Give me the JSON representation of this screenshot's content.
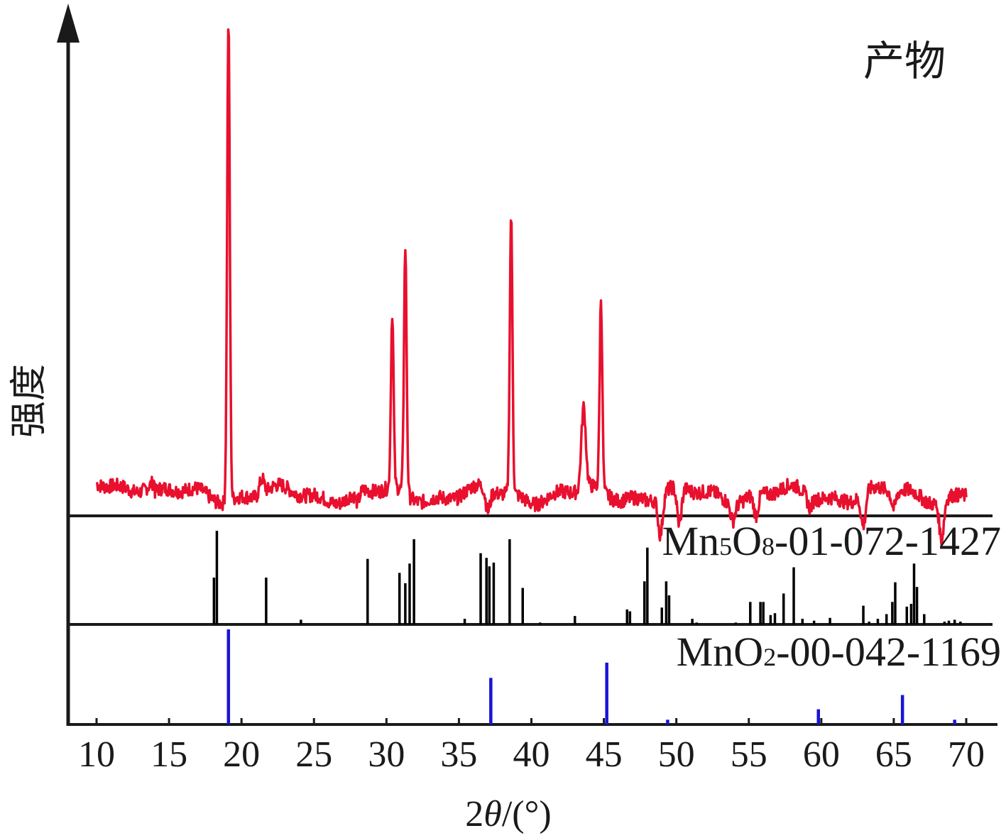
{
  "chart_data": {
    "type": "line",
    "xlabel_parts": {
      "prefix": "2",
      "symbol": "θ",
      "suffix": "/(°)"
    },
    "ylabel": "强度",
    "x_ticks": [
      10,
      15,
      20,
      25,
      30,
      35,
      40,
      45,
      50,
      55,
      60,
      65,
      70
    ],
    "xlim": [
      8,
      72
    ],
    "grid": false,
    "legend": "none",
    "colors": {
      "product": "#e8102e",
      "mn5o8": "#000000",
      "mno2": "#1a14d6",
      "axis": "#1a1a1a"
    },
    "product": {
      "label": "产物",
      "baseline": 12,
      "peaks": [
        {
          "x": 19.1,
          "y": 100
        },
        {
          "x": 21.4,
          "y": 15
        },
        {
          "x": 28.0,
          "y": 10
        },
        {
          "x": 30.4,
          "y": 44
        },
        {
          "x": 31.3,
          "y": 57
        },
        {
          "x": 37.0,
          "y": 8
        },
        {
          "x": 38.6,
          "y": 63
        },
        {
          "x": 43.6,
          "y": 27
        },
        {
          "x": 44.8,
          "y": 47
        },
        {
          "x": 48.9,
          "y": 5
        },
        {
          "x": 50.2,
          "y": 5
        },
        {
          "x": 53.9,
          "y": 9
        },
        {
          "x": 55.5,
          "y": 8
        },
        {
          "x": 59.2,
          "y": 10
        },
        {
          "x": 62.9,
          "y": 6
        },
        {
          "x": 65.0,
          "y": 9
        },
        {
          "x": 68.3,
          "y": 5
        }
      ],
      "x_range": [
        10,
        70
      ]
    },
    "mn5o8": {
      "label_parts": {
        "a": "Mn",
        "b": "5",
        "c": "O",
        "d": "8",
        "e": "-01-072-1427"
      },
      "sticks": [
        [
          18.1,
          50
        ],
        [
          18.3,
          100
        ],
        [
          21.7,
          50
        ],
        [
          24.1,
          5
        ],
        [
          28.7,
          70
        ],
        [
          30.9,
          55
        ],
        [
          31.3,
          44
        ],
        [
          31.6,
          65
        ],
        [
          31.9,
          91
        ],
        [
          35.4,
          6
        ],
        [
          36.5,
          76
        ],
        [
          36.9,
          71
        ],
        [
          37.1,
          62
        ],
        [
          37.4,
          66
        ],
        [
          38.5,
          91
        ],
        [
          39.4,
          39
        ],
        [
          40.6,
          2
        ],
        [
          43.0,
          9
        ],
        [
          46.6,
          16
        ],
        [
          46.8,
          14
        ],
        [
          47.8,
          46
        ],
        [
          48.0,
          82
        ],
        [
          49.0,
          18
        ],
        [
          49.3,
          46
        ],
        [
          49.5,
          31
        ],
        [
          51.1,
          6
        ],
        [
          51.4,
          2
        ],
        [
          54.1,
          2
        ],
        [
          55.1,
          24
        ],
        [
          55.8,
          24
        ],
        [
          56.0,
          24
        ],
        [
          56.5,
          10
        ],
        [
          56.8,
          12
        ],
        [
          57.4,
          33
        ],
        [
          58.1,
          61
        ],
        [
          58.7,
          6
        ],
        [
          59.5,
          4
        ],
        [
          60.6,
          7
        ],
        [
          62.9,
          20
        ],
        [
          63.3,
          3
        ],
        [
          63.9,
          6
        ],
        [
          64.5,
          11
        ],
        [
          64.9,
          24
        ],
        [
          65.1,
          45
        ],
        [
          65.9,
          19
        ],
        [
          66.2,
          22
        ],
        [
          66.4,
          65
        ],
        [
          66.6,
          40
        ],
        [
          67.1,
          11
        ],
        [
          68.5,
          3
        ],
        [
          68.8,
          4
        ],
        [
          69.2,
          5
        ],
        [
          69.6,
          3
        ]
      ]
    },
    "mno2": {
      "label_parts": {
        "a": "MnO",
        "b": "2",
        "c": "-00-042-1169"
      },
      "sticks": [
        [
          19.1,
          100
        ],
        [
          37.2,
          49
        ],
        [
          45.2,
          65
        ],
        [
          49.4,
          5
        ],
        [
          59.8,
          16
        ],
        [
          65.6,
          31
        ],
        [
          69.2,
          5
        ]
      ]
    }
  }
}
